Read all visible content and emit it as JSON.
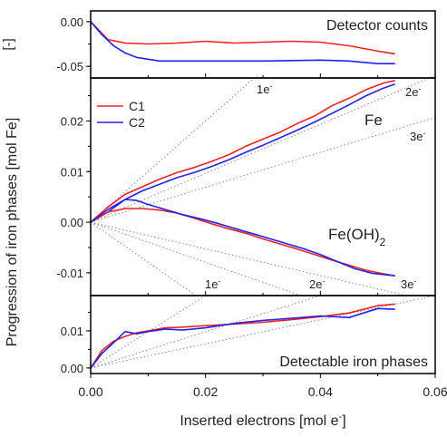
{
  "figure": {
    "x_axis_label": "Inserted electrons [mol e⁻]",
    "y_axis_label": "Progression of iron phases [mol Fe]",
    "x_ticks": [
      "0.00",
      "0.02",
      "0.04",
      "0.06"
    ],
    "colors": {
      "C1": "#ee2222",
      "C2": "#2222ee",
      "guide": "#888888",
      "axis": "#000000"
    }
  },
  "chart_data": [
    {
      "type": "line",
      "panel": "top",
      "annotation": "Detector counts",
      "ylabel": "[-]",
      "xlim": [
        0.0,
        0.06
      ],
      "ylim": [
        -0.063,
        0.012
      ],
      "y_ticks": [
        "0.00",
        "-0.05"
      ],
      "series": [
        {
          "name": "C1",
          "x": [
            0.0,
            0.003,
            0.006,
            0.01,
            0.015,
            0.02,
            0.025,
            0.03,
            0.035,
            0.04,
            0.045,
            0.05,
            0.053
          ],
          "y": [
            0.0,
            -0.02,
            -0.024,
            -0.025,
            -0.024,
            -0.022,
            -0.024,
            -0.023,
            -0.022,
            -0.023,
            -0.027,
            -0.033,
            -0.036
          ]
        },
        {
          "name": "C2",
          "x": [
            0.0,
            0.002,
            0.004,
            0.006,
            0.008,
            0.012,
            0.02,
            0.03,
            0.04,
            0.045,
            0.05,
            0.053
          ],
          "y": [
            0.0,
            -0.015,
            -0.027,
            -0.035,
            -0.04,
            -0.044,
            -0.044,
            -0.044,
            -0.043,
            -0.044,
            -0.047,
            -0.047
          ]
        }
      ]
    },
    {
      "type": "line",
      "panel": "middle",
      "xlim": [
        0.0,
        0.06
      ],
      "ylim": [
        -0.0145,
        0.0285
      ],
      "y_ticks": [
        "0.02",
        "0.01",
        "0.00",
        "-0.01"
      ],
      "legend": {
        "placement": "top-left",
        "entries": [
          "C1",
          "C2"
        ]
      },
      "annotations": [
        "Fe",
        "Fe(OH)₂",
        "1e⁻",
        "2e⁻",
        "3e⁻"
      ],
      "series": [
        {
          "name": "C1",
          "group": "Fe",
          "x": [
            0.0,
            0.003,
            0.006,
            0.009,
            0.012,
            0.015,
            0.018,
            0.021,
            0.024,
            0.027,
            0.03,
            0.033,
            0.036,
            0.039,
            0.042,
            0.045,
            0.048,
            0.051,
            0.053
          ],
          "y": [
            0.0,
            0.003,
            0.0055,
            0.007,
            0.0085,
            0.0098,
            0.0108,
            0.012,
            0.0133,
            0.015,
            0.0164,
            0.0178,
            0.0195,
            0.021,
            0.023,
            0.0245,
            0.0262,
            0.0275,
            0.028
          ]
        },
        {
          "name": "C2",
          "group": "Fe",
          "x": [
            0.0,
            0.003,
            0.006,
            0.009,
            0.012,
            0.015,
            0.018,
            0.021,
            0.024,
            0.027,
            0.03,
            0.033,
            0.036,
            0.039,
            0.042,
            0.045,
            0.048,
            0.051,
            0.053
          ],
          "y": [
            0.0,
            0.002,
            0.0045,
            0.0062,
            0.0075,
            0.0088,
            0.0098,
            0.011,
            0.0123,
            0.0138,
            0.0152,
            0.0167,
            0.0182,
            0.0198,
            0.0215,
            0.0232,
            0.025,
            0.0265,
            0.0273
          ]
        },
        {
          "name": "C1",
          "group": "Fe(OH)2",
          "x": [
            0.0,
            0.003,
            0.006,
            0.009,
            0.012,
            0.015,
            0.018,
            0.021,
            0.024,
            0.027,
            0.03,
            0.033,
            0.036,
            0.039,
            0.042,
            0.045,
            0.048,
            0.051,
            0.053
          ],
          "y": [
            0.0,
            0.002,
            0.0027,
            0.0027,
            0.0024,
            0.0018,
            0.0008,
            -0.0003,
            -0.0013,
            -0.0022,
            -0.0033,
            -0.0043,
            -0.0053,
            -0.0064,
            -0.0075,
            -0.0085,
            -0.0095,
            -0.0102,
            -0.0106
          ]
        },
        {
          "name": "C2",
          "group": "Fe(OH)2",
          "x": [
            0.0,
            0.003,
            0.006,
            0.008,
            0.01,
            0.013,
            0.016,
            0.019,
            0.022,
            0.025,
            0.028,
            0.031,
            0.034,
            0.037,
            0.04,
            0.043,
            0.046,
            0.049,
            0.053
          ],
          "y": [
            0.0,
            0.0025,
            0.0045,
            0.0043,
            0.0035,
            0.0025,
            0.0015,
            0.0007,
            -0.0002,
            -0.0012,
            -0.0022,
            -0.0032,
            -0.0042,
            -0.0052,
            -0.0064,
            -0.0078,
            -0.0092,
            -0.0101,
            -0.0106
          ]
        }
      ]
    },
    {
      "type": "line",
      "panel": "bottom",
      "annotation": "Detectable iron phases",
      "xlim": [
        0.0,
        0.06
      ],
      "ylim": [
        -0.0015,
        0.0195
      ],
      "y_ticks": [
        "0.01",
        "0.00"
      ],
      "annotations": [
        "1e⁻",
        "2e⁻",
        "3e⁻"
      ],
      "series": [
        {
          "name": "C1",
          "x": [
            0.0,
            0.002,
            0.004,
            0.006,
            0.008,
            0.01,
            0.013,
            0.016,
            0.02,
            0.025,
            0.03,
            0.035,
            0.04,
            0.045,
            0.05,
            0.053
          ],
          "y": [
            0.0,
            0.0048,
            0.0072,
            0.0085,
            0.0095,
            0.01,
            0.0108,
            0.011,
            0.0114,
            0.0118,
            0.0123,
            0.013,
            0.0138,
            0.0148,
            0.0168,
            0.0172
          ]
        },
        {
          "name": "C2",
          "x": [
            0.0,
            0.002,
            0.004,
            0.006,
            0.008,
            0.01,
            0.013,
            0.016,
            0.02,
            0.025,
            0.03,
            0.035,
            0.04,
            0.045,
            0.05,
            0.053
          ],
          "y": [
            0.0,
            0.004,
            0.0068,
            0.0098,
            0.0092,
            0.0098,
            0.0105,
            0.0102,
            0.0108,
            0.012,
            0.0128,
            0.0134,
            0.014,
            0.0136,
            0.016,
            0.0158
          ]
        }
      ]
    }
  ]
}
